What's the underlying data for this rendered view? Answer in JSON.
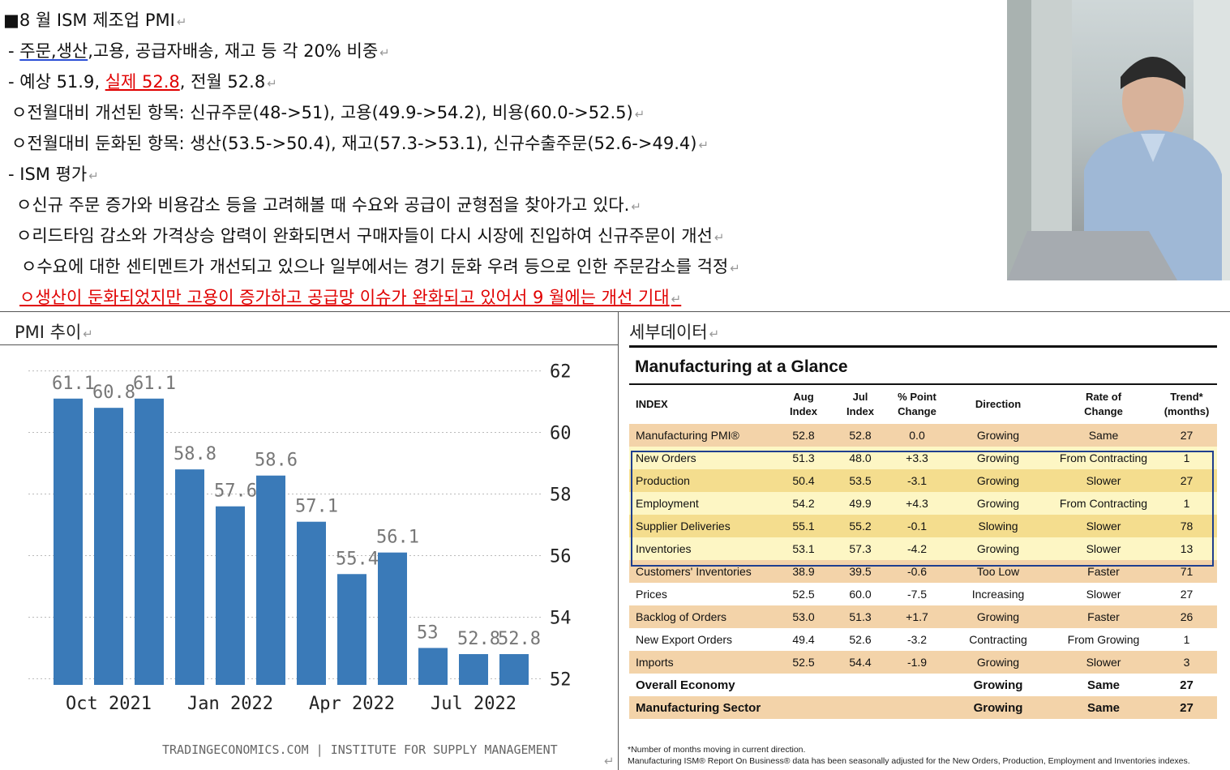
{
  "notes": {
    "title": "■8 월 ISM 제조업 PMI",
    "weights": {
      "prefix": "- ",
      "underlined": "주문,생산",
      "rest": ",고용, 공급자배송, 재고 등 각 20% 비중"
    },
    "forecast": {
      "prefix": "- 예상 51.9, ",
      "actual": "실제 52.8",
      "rest": ", 전월 52.8"
    },
    "improved": "ㅇ전월대비 개선된 항목: 신규주문(48->51), 고용(49.9->54.2), 비용(60.0->52.5)",
    "slowed": "ㅇ전월대비 둔화된 항목: 생산(53.5->50.4), 재고(57.3->53.1), 신규수출주문(52.6->49.4)",
    "ism_eval": "- ISM 평가",
    "eval_1": "ㅇ신규 주문 증가와 비용감소 등을 고려해볼 때 수요와 공급이 균형점을 찾아가고 있다.",
    "eval_2": "ㅇ리드타임 감소와 가격상승 압력이 완화되면서 구매자들이 다시 시장에 진입하여 신규주문이 개선",
    "eval_3": "ㅇ수요에 대한 센티멘트가 개선되고 있으나 일부에서는 경기 둔화 우려 등으로 인한 주문감소를 걱정",
    "eval_4": "ㅇ생산이 둔화되었지만 고용이 증가하고 공급망 이슈가 완화되고 있어서 9 월에는 개선 기대",
    "return_mark": "↵"
  },
  "panels": {
    "left_label": "PMI 추이",
    "right_label": "세부데이터"
  },
  "chart_data": {
    "type": "bar",
    "values": [
      61.1,
      60.8,
      61.1,
      58.8,
      57.6,
      58.6,
      57.1,
      55.4,
      56.1,
      53,
      52.8,
      52.8
    ],
    "value_labels": [
      "61.1",
      "60.8",
      "61.1",
      "58.8",
      "57.6",
      "58.6",
      "57.1",
      "55.4",
      "56.1",
      "53",
      "52.8",
      "52.8"
    ],
    "x_tick_labels": [
      "Oct 2021",
      "Jan 2022",
      "Apr 2022",
      "Jul 2022"
    ],
    "y_ticks": [
      52,
      54,
      56,
      58,
      60,
      62
    ],
    "ylim": [
      51.8,
      62.2
    ],
    "grid": "horizontal-dotted",
    "bar_color": "#3a7ab8",
    "source": "TRADINGECONOMICS.COM  |  INSTITUTE FOR SUPPLY MANAGEMENT"
  },
  "glance": {
    "title": "Manufacturing at a Glance",
    "headers": [
      "INDEX",
      "Aug Index",
      "Jul Index",
      "% Point Change",
      "Direction",
      "Rate of Change",
      "Trend* (months)"
    ],
    "rows": [
      {
        "name": "Manufacturing PMI®",
        "aug": "52.8",
        "jul": "52.8",
        "chg": "0.0",
        "dir": "Growing",
        "rate": "Same",
        "trend": "27"
      },
      {
        "name": "New Orders",
        "aug": "51.3",
        "jul": "48.0",
        "chg": "+3.3",
        "dir": "Growing",
        "rate": "From Contracting",
        "trend": "1"
      },
      {
        "name": "Production",
        "aug": "50.4",
        "jul": "53.5",
        "chg": "-3.1",
        "dir": "Growing",
        "rate": "Slower",
        "trend": "27"
      },
      {
        "name": "Employment",
        "aug": "54.2",
        "jul": "49.9",
        "chg": "+4.3",
        "dir": "Growing",
        "rate": "From Contracting",
        "trend": "1"
      },
      {
        "name": "Supplier Deliveries",
        "aug": "55.1",
        "jul": "55.2",
        "chg": "-0.1",
        "dir": "Slowing",
        "rate": "Slower",
        "trend": "78"
      },
      {
        "name": "Inventories",
        "aug": "53.1",
        "jul": "57.3",
        "chg": "-4.2",
        "dir": "Growing",
        "rate": "Slower",
        "trend": "13"
      },
      {
        "name": "Customers' Inventories",
        "aug": "38.9",
        "jul": "39.5",
        "chg": "-0.6",
        "dir": "Too Low",
        "rate": "Faster",
        "trend": "71"
      },
      {
        "name": "Prices",
        "aug": "52.5",
        "jul": "60.0",
        "chg": "-7.5",
        "dir": "Increasing",
        "rate": "Slower",
        "trend": "27"
      },
      {
        "name": "Backlog of Orders",
        "aug": "53.0",
        "jul": "51.3",
        "chg": "+1.7",
        "dir": "Growing",
        "rate": "Faster",
        "trend": "26"
      },
      {
        "name": "New Export Orders",
        "aug": "49.4",
        "jul": "52.6",
        "chg": "-3.2",
        "dir": "Contracting",
        "rate": "From Growing",
        "trend": "1"
      },
      {
        "name": "Imports",
        "aug": "52.5",
        "jul": "54.4",
        "chg": "-1.9",
        "dir": "Growing",
        "rate": "Slower",
        "trend": "3"
      },
      {
        "name": "Overall Economy",
        "aug": "",
        "jul": "",
        "chg": "",
        "dir": "Growing",
        "rate": "Same",
        "trend": "27"
      },
      {
        "name": "Manufacturing Sector",
        "aug": "",
        "jul": "",
        "chg": "",
        "dir": "Growing",
        "rate": "Same",
        "trend": "27"
      }
    ],
    "footnote_1": "*Number of months moving in current direction.",
    "footnote_2": "Manufacturing ISM® Report On Business® data has been seasonally adjusted for the New Orders, Production, Employment and Inventories indexes."
  }
}
